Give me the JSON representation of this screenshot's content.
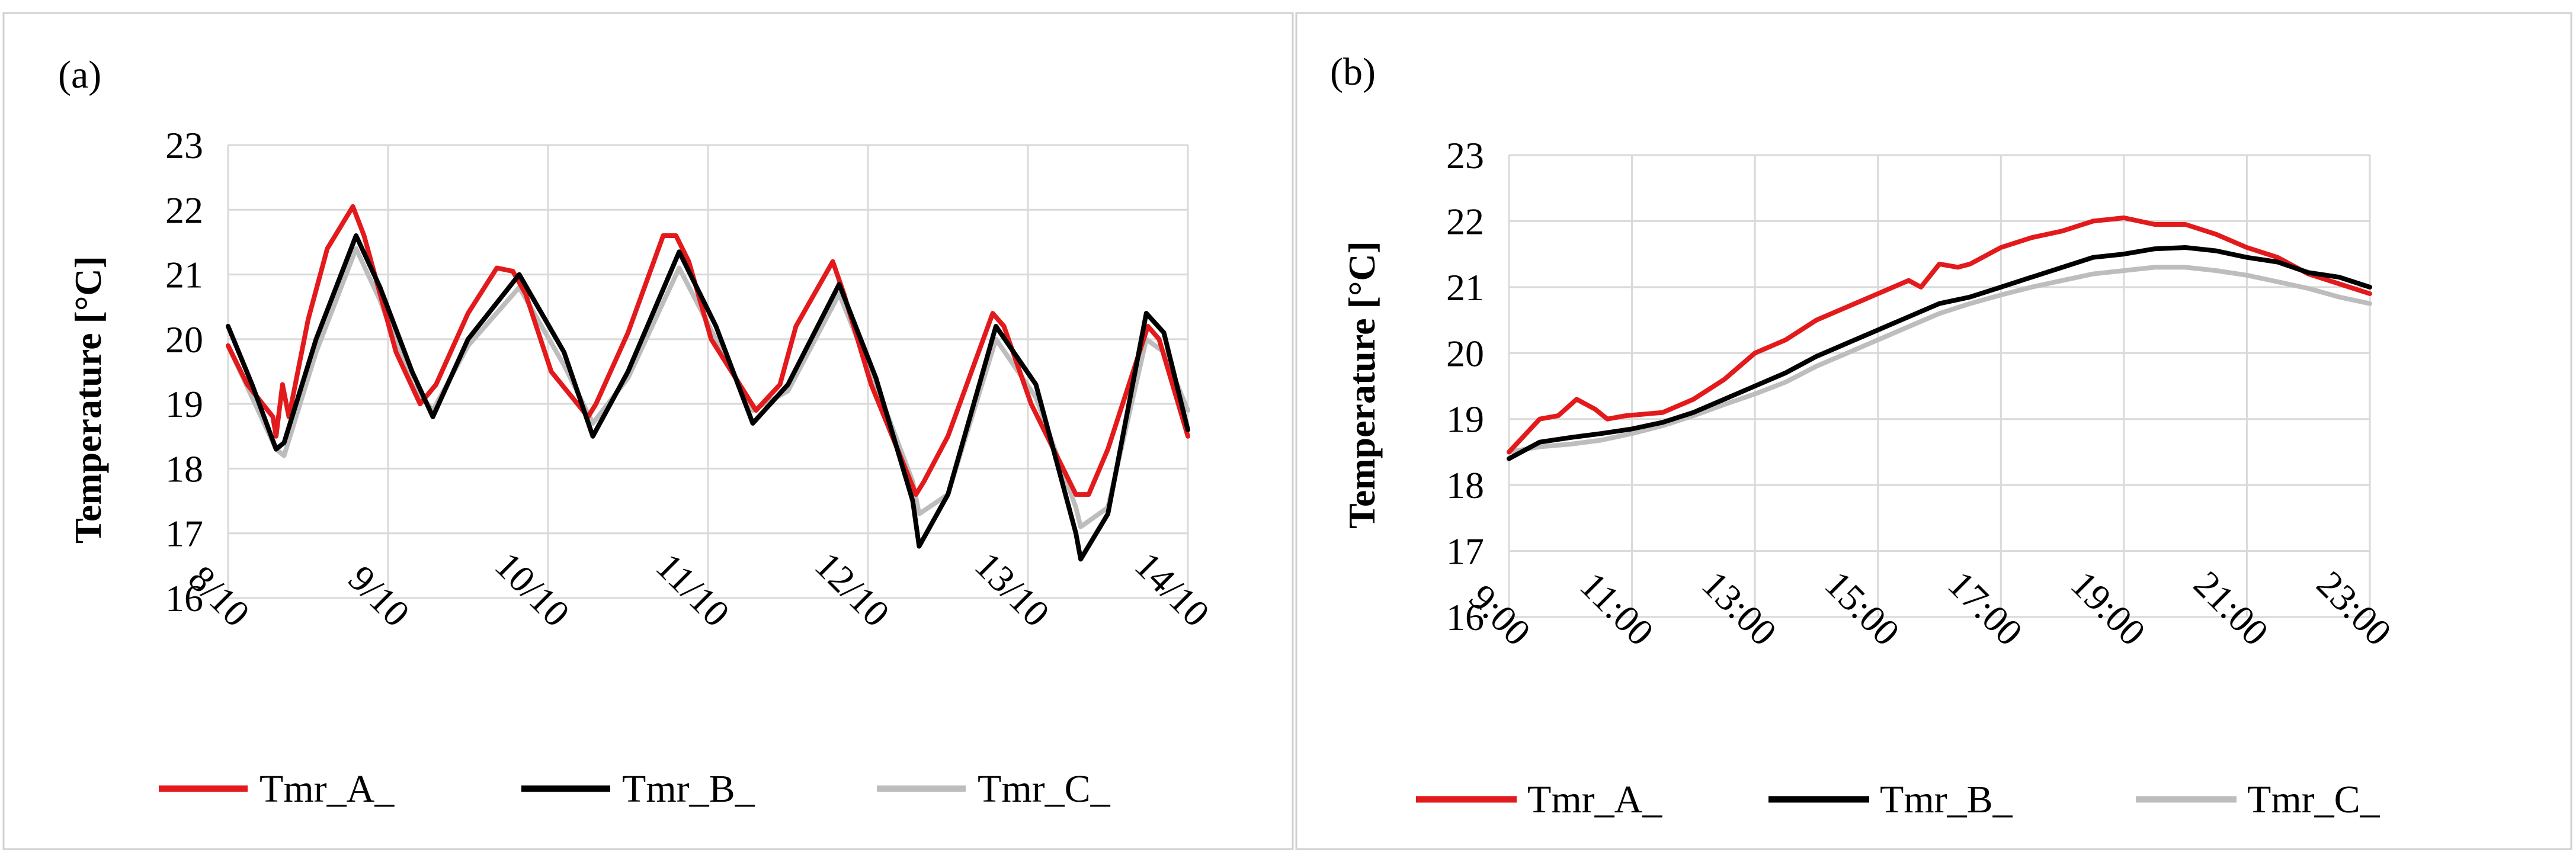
{
  "chart_data": [
    {
      "panel_label": "(a)",
      "type": "line",
      "title": "",
      "xlabel": "",
      "ylabel": "Temperature [°C]",
      "ylim": [
        16,
        23
      ],
      "y_ticks": [
        16,
        17,
        18,
        19,
        20,
        21,
        22,
        23
      ],
      "x_range_days": [
        0,
        6
      ],
      "x_tick_positions_days": [
        0,
        1,
        2,
        3,
        4,
        5,
        6
      ],
      "x_tick_labels": [
        "8/10",
        "9/10",
        "10/10",
        "11/10",
        "12/10",
        "13/10",
        "14/10"
      ],
      "grid": true,
      "legend_position": "bottom",
      "series": [
        {
          "name": "Tmr_A_",
          "color": "#e31a1c",
          "x": [
            0,
            0.12,
            0.28,
            0.3,
            0.34,
            0.38,
            0.5,
            0.62,
            0.78,
            0.85,
            1.05,
            1.2,
            1.3,
            1.5,
            1.68,
            1.78,
            1.86,
            2.02,
            2.25,
            2.3,
            2.5,
            2.72,
            2.8,
            2.88,
            3.02,
            3.3,
            3.45,
            3.55,
            3.78,
            3.85,
            4.02,
            4.3,
            4.35,
            4.5,
            4.78,
            4.85,
            5.02,
            5.3,
            5.38,
            5.5,
            5.75,
            5.82,
            6
          ],
          "y": [
            19.9,
            19.3,
            18.8,
            18.5,
            19.3,
            18.8,
            20.3,
            21.4,
            22.05,
            21.6,
            19.8,
            19.0,
            19.3,
            20.4,
            21.1,
            21.05,
            20.7,
            19.5,
            18.8,
            19.0,
            20.1,
            21.6,
            21.6,
            21.2,
            20.0,
            18.9,
            19.3,
            20.2,
            21.2,
            20.7,
            19.3,
            17.6,
            17.8,
            18.5,
            20.4,
            20.2,
            19.0,
            17.6,
            17.6,
            18.3,
            20.2,
            20.0,
            18.5
          ]
        },
        {
          "name": "Tmr_B_",
          "color": "#000000",
          "x": [
            0,
            0.15,
            0.3,
            0.35,
            0.55,
            0.8,
            0.95,
            1.15,
            1.28,
            1.5,
            1.82,
            2.1,
            2.28,
            2.5,
            2.82,
            3.05,
            3.28,
            3.5,
            3.82,
            4.05,
            4.28,
            4.32,
            4.5,
            4.8,
            5.05,
            5.3,
            5.33,
            5.5,
            5.74,
            5.85,
            6
          ],
          "y": [
            20.2,
            19.3,
            18.3,
            18.4,
            20.0,
            21.6,
            20.8,
            19.5,
            18.8,
            20.0,
            21.0,
            19.8,
            18.5,
            19.5,
            21.35,
            20.2,
            18.7,
            19.3,
            20.85,
            19.4,
            17.5,
            16.8,
            17.6,
            20.2,
            19.3,
            17.0,
            16.6,
            17.3,
            20.4,
            20.1,
            18.6
          ]
        },
        {
          "name": "Tmr_C_",
          "color": "#bdbdbd",
          "x": [
            0,
            0.15,
            0.3,
            0.35,
            0.55,
            0.8,
            0.95,
            1.15,
            1.28,
            1.5,
            1.82,
            2.1,
            2.28,
            2.5,
            2.82,
            3.05,
            3.28,
            3.5,
            3.82,
            4.05,
            4.28,
            4.32,
            4.5,
            4.8,
            5.05,
            5.3,
            5.33,
            5.5,
            5.74,
            5.85,
            6
          ],
          "y": [
            19.9,
            19.1,
            18.3,
            18.2,
            19.8,
            21.4,
            20.6,
            19.3,
            18.9,
            19.9,
            20.8,
            19.6,
            18.7,
            19.4,
            21.1,
            20.0,
            18.9,
            19.2,
            20.7,
            19.3,
            17.8,
            17.3,
            17.6,
            20.0,
            19.1,
            17.4,
            17.1,
            17.4,
            20.0,
            19.8,
            18.9
          ]
        }
      ]
    },
    {
      "panel_label": "(b)",
      "type": "line",
      "title": "",
      "xlabel": "",
      "ylabel": "Temperature [°C]",
      "ylim": [
        16,
        23
      ],
      "y_ticks": [
        16,
        17,
        18,
        19,
        20,
        21,
        22,
        23
      ],
      "x_range_hours": [
        9,
        23
      ],
      "x_tick_positions_hours": [
        9,
        11,
        13,
        15,
        17,
        19,
        21,
        23
      ],
      "x_tick_labels": [
        "9:00",
        "11:00",
        "13:00",
        "15:00",
        "17:00",
        "19:00",
        "21:00",
        "23:00"
      ],
      "grid": true,
      "legend_position": "bottom",
      "series": [
        {
          "name": "Tmr_A_",
          "color": "#e31a1c",
          "x": [
            9,
            9.5,
            9.8,
            10.1,
            10.4,
            10.6,
            10.9,
            11.5,
            12,
            12.5,
            13,
            13.5,
            14,
            14.5,
            15,
            15.5,
            15.7,
            16,
            16.3,
            16.5,
            17,
            17.5,
            18,
            18.5,
            19,
            19.5,
            20,
            20.5,
            21,
            21.5,
            22,
            22.5,
            23
          ],
          "y": [
            18.5,
            19.0,
            19.05,
            19.3,
            19.15,
            19.0,
            19.05,
            19.1,
            19.3,
            19.6,
            20.0,
            20.2,
            20.5,
            20.7,
            20.9,
            21.1,
            21.0,
            21.35,
            21.3,
            21.35,
            21.6,
            21.75,
            21.85,
            22.0,
            22.05,
            21.95,
            21.95,
            21.8,
            21.6,
            21.45,
            21.2,
            21.05,
            20.9
          ]
        },
        {
          "name": "Tmr_B_",
          "color": "#000000",
          "x": [
            9,
            9.5,
            10,
            10.5,
            11,
            11.5,
            12,
            12.5,
            13,
            13.5,
            14,
            14.5,
            15,
            15.5,
            16,
            16.5,
            17,
            17.5,
            18,
            18.5,
            19,
            19.5,
            20,
            20.5,
            21,
            21.5,
            22,
            22.5,
            23
          ],
          "y": [
            18.4,
            18.65,
            18.72,
            18.78,
            18.85,
            18.95,
            19.1,
            19.3,
            19.5,
            19.7,
            19.95,
            20.15,
            20.35,
            20.55,
            20.75,
            20.85,
            21.0,
            21.15,
            21.3,
            21.45,
            21.5,
            21.58,
            21.6,
            21.55,
            21.45,
            21.38,
            21.22,
            21.15,
            21.0
          ]
        },
        {
          "name": "Tmr_C_",
          "color": "#bdbdbd",
          "x": [
            9,
            9.5,
            10,
            10.5,
            11,
            11.5,
            12,
            12.5,
            13,
            13.5,
            14,
            14.5,
            15,
            15.5,
            16,
            16.5,
            17,
            17.5,
            18,
            18.5,
            19,
            19.5,
            20,
            20.5,
            21,
            21.5,
            22,
            22.5,
            23
          ],
          "y": [
            18.5,
            18.58,
            18.62,
            18.68,
            18.78,
            18.9,
            19.05,
            19.22,
            19.38,
            19.56,
            19.8,
            20.0,
            20.2,
            20.4,
            20.6,
            20.75,
            20.88,
            21.0,
            21.1,
            21.2,
            21.25,
            21.3,
            21.3,
            21.25,
            21.18,
            21.08,
            20.98,
            20.85,
            20.75
          ]
        }
      ]
    }
  ]
}
